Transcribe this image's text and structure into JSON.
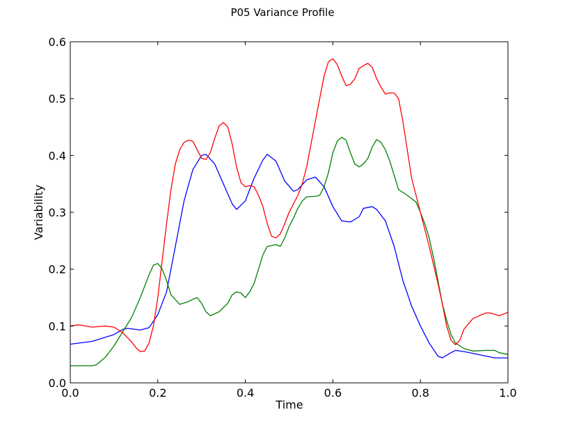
{
  "chart_data": {
    "type": "line",
    "title": "P05 Variance Profile",
    "xlabel": "Time",
    "ylabel": "Variability",
    "xlim": [
      0.0,
      1.0
    ],
    "ylim": [
      0.0,
      0.6
    ],
    "x_ticks": [
      "0.0",
      "0.2",
      "0.4",
      "0.6",
      "0.8",
      "1.0"
    ],
    "y_ticks": [
      "0.0",
      "0.1",
      "0.2",
      "0.3",
      "0.4",
      "0.5",
      "0.6"
    ],
    "grid": false,
    "series": [
      {
        "color": "#0000ff",
        "points": [
          [
            0.0,
            0.068
          ],
          [
            0.05,
            0.073
          ],
          [
            0.1,
            0.085
          ],
          [
            0.12,
            0.094
          ],
          [
            0.13,
            0.096
          ],
          [
            0.16,
            0.093
          ],
          [
            0.18,
            0.097
          ],
          [
            0.2,
            0.12
          ],
          [
            0.22,
            0.16
          ],
          [
            0.24,
            0.24
          ],
          [
            0.26,
            0.32
          ],
          [
            0.28,
            0.375
          ],
          [
            0.3,
            0.4
          ],
          [
            0.31,
            0.402
          ],
          [
            0.33,
            0.385
          ],
          [
            0.35,
            0.35
          ],
          [
            0.37,
            0.315
          ],
          [
            0.38,
            0.305
          ],
          [
            0.4,
            0.32
          ],
          [
            0.42,
            0.36
          ],
          [
            0.44,
            0.392
          ],
          [
            0.45,
            0.402
          ],
          [
            0.47,
            0.39
          ],
          [
            0.49,
            0.355
          ],
          [
            0.51,
            0.337
          ],
          [
            0.52,
            0.34
          ],
          [
            0.54,
            0.357
          ],
          [
            0.56,
            0.362
          ],
          [
            0.58,
            0.345
          ],
          [
            0.6,
            0.31
          ],
          [
            0.62,
            0.285
          ],
          [
            0.64,
            0.283
          ],
          [
            0.66,
            0.292
          ],
          [
            0.67,
            0.307
          ],
          [
            0.69,
            0.31
          ],
          [
            0.7,
            0.305
          ],
          [
            0.72,
            0.285
          ],
          [
            0.74,
            0.24
          ],
          [
            0.76,
            0.18
          ],
          [
            0.78,
            0.135
          ],
          [
            0.8,
            0.1
          ],
          [
            0.82,
            0.07
          ],
          [
            0.84,
            0.047
          ],
          [
            0.85,
            0.044
          ],
          [
            0.87,
            0.053
          ],
          [
            0.88,
            0.057
          ],
          [
            0.9,
            0.055
          ],
          [
            0.95,
            0.047
          ],
          [
            0.97,
            0.044
          ],
          [
            1.0,
            0.044
          ]
        ]
      },
      {
        "color": "#008000",
        "points": [
          [
            0.0,
            0.03
          ],
          [
            0.05,
            0.03
          ],
          [
            0.06,
            0.032
          ],
          [
            0.08,
            0.045
          ],
          [
            0.1,
            0.065
          ],
          [
            0.12,
            0.09
          ],
          [
            0.14,
            0.115
          ],
          [
            0.16,
            0.15
          ],
          [
            0.18,
            0.19
          ],
          [
            0.19,
            0.207
          ],
          [
            0.2,
            0.21
          ],
          [
            0.21,
            0.2
          ],
          [
            0.22,
            0.18
          ],
          [
            0.23,
            0.155
          ],
          [
            0.25,
            0.138
          ],
          [
            0.27,
            0.143
          ],
          [
            0.28,
            0.147
          ],
          [
            0.29,
            0.15
          ],
          [
            0.3,
            0.14
          ],
          [
            0.31,
            0.125
          ],
          [
            0.32,
            0.118
          ],
          [
            0.34,
            0.125
          ],
          [
            0.36,
            0.14
          ],
          [
            0.37,
            0.155
          ],
          [
            0.38,
            0.16
          ],
          [
            0.39,
            0.158
          ],
          [
            0.4,
            0.15
          ],
          [
            0.41,
            0.16
          ],
          [
            0.42,
            0.175
          ],
          [
            0.43,
            0.2
          ],
          [
            0.44,
            0.225
          ],
          [
            0.45,
            0.24
          ],
          [
            0.47,
            0.243
          ],
          [
            0.48,
            0.24
          ],
          [
            0.49,
            0.255
          ],
          [
            0.5,
            0.275
          ],
          [
            0.51,
            0.29
          ],
          [
            0.52,
            0.307
          ],
          [
            0.53,
            0.32
          ],
          [
            0.54,
            0.327
          ],
          [
            0.56,
            0.328
          ],
          [
            0.57,
            0.33
          ],
          [
            0.58,
            0.345
          ],
          [
            0.59,
            0.37
          ],
          [
            0.6,
            0.405
          ],
          [
            0.61,
            0.425
          ],
          [
            0.62,
            0.432
          ],
          [
            0.63,
            0.427
          ],
          [
            0.64,
            0.405
          ],
          [
            0.65,
            0.385
          ],
          [
            0.66,
            0.38
          ],
          [
            0.67,
            0.385
          ],
          [
            0.68,
            0.395
          ],
          [
            0.69,
            0.415
          ],
          [
            0.7,
            0.428
          ],
          [
            0.71,
            0.423
          ],
          [
            0.72,
            0.41
          ],
          [
            0.73,
            0.39
          ],
          [
            0.74,
            0.365
          ],
          [
            0.75,
            0.34
          ],
          [
            0.77,
            0.33
          ],
          [
            0.79,
            0.318
          ],
          [
            0.8,
            0.3
          ],
          [
            0.81,
            0.28
          ],
          [
            0.82,
            0.255
          ],
          [
            0.83,
            0.22
          ],
          [
            0.84,
            0.18
          ],
          [
            0.85,
            0.14
          ],
          [
            0.86,
            0.11
          ],
          [
            0.87,
            0.085
          ],
          [
            0.88,
            0.07
          ],
          [
            0.9,
            0.06
          ],
          [
            0.92,
            0.056
          ],
          [
            0.95,
            0.057
          ],
          [
            0.97,
            0.057
          ],
          [
            0.98,
            0.053
          ],
          [
            1.0,
            0.05
          ]
        ]
      },
      {
        "color": "#ff0000",
        "points": [
          [
            0.0,
            0.1
          ],
          [
            0.02,
            0.102
          ],
          [
            0.05,
            0.098
          ],
          [
            0.08,
            0.1
          ],
          [
            0.1,
            0.098
          ],
          [
            0.12,
            0.088
          ],
          [
            0.14,
            0.072
          ],
          [
            0.15,
            0.062
          ],
          [
            0.16,
            0.055
          ],
          [
            0.17,
            0.056
          ],
          [
            0.18,
            0.07
          ],
          [
            0.19,
            0.1
          ],
          [
            0.2,
            0.15
          ],
          [
            0.21,
            0.215
          ],
          [
            0.22,
            0.28
          ],
          [
            0.23,
            0.34
          ],
          [
            0.24,
            0.385
          ],
          [
            0.25,
            0.41
          ],
          [
            0.26,
            0.423
          ],
          [
            0.27,
            0.427
          ],
          [
            0.28,
            0.425
          ],
          [
            0.29,
            0.41
          ],
          [
            0.3,
            0.395
          ],
          [
            0.31,
            0.393
          ],
          [
            0.32,
            0.405
          ],
          [
            0.33,
            0.43
          ],
          [
            0.34,
            0.452
          ],
          [
            0.35,
            0.458
          ],
          [
            0.36,
            0.45
          ],
          [
            0.37,
            0.42
          ],
          [
            0.38,
            0.38
          ],
          [
            0.39,
            0.352
          ],
          [
            0.4,
            0.345
          ],
          [
            0.41,
            0.347
          ],
          [
            0.42,
            0.345
          ],
          [
            0.43,
            0.33
          ],
          [
            0.44,
            0.31
          ],
          [
            0.45,
            0.28
          ],
          [
            0.46,
            0.258
          ],
          [
            0.47,
            0.255
          ],
          [
            0.48,
            0.262
          ],
          [
            0.49,
            0.28
          ],
          [
            0.5,
            0.3
          ],
          [
            0.51,
            0.315
          ],
          [
            0.52,
            0.33
          ],
          [
            0.53,
            0.35
          ],
          [
            0.54,
            0.38
          ],
          [
            0.55,
            0.42
          ],
          [
            0.56,
            0.46
          ],
          [
            0.57,
            0.5
          ],
          [
            0.58,
            0.54
          ],
          [
            0.59,
            0.565
          ],
          [
            0.6,
            0.57
          ],
          [
            0.61,
            0.56
          ],
          [
            0.62,
            0.54
          ],
          [
            0.63,
            0.523
          ],
          [
            0.64,
            0.525
          ],
          [
            0.65,
            0.535
          ],
          [
            0.66,
            0.553
          ],
          [
            0.67,
            0.558
          ],
          [
            0.68,
            0.562
          ],
          [
            0.69,
            0.555
          ],
          [
            0.7,
            0.535
          ],
          [
            0.71,
            0.52
          ],
          [
            0.72,
            0.508
          ],
          [
            0.73,
            0.51
          ],
          [
            0.74,
            0.51
          ],
          [
            0.75,
            0.5
          ],
          [
            0.76,
            0.46
          ],
          [
            0.77,
            0.41
          ],
          [
            0.78,
            0.36
          ],
          [
            0.8,
            0.3
          ],
          [
            0.82,
            0.24
          ],
          [
            0.84,
            0.175
          ],
          [
            0.85,
            0.14
          ],
          [
            0.86,
            0.1
          ],
          [
            0.87,
            0.075
          ],
          [
            0.88,
            0.067
          ],
          [
            0.89,
            0.075
          ],
          [
            0.9,
            0.095
          ],
          [
            0.92,
            0.113
          ],
          [
            0.94,
            0.12
          ],
          [
            0.95,
            0.123
          ],
          [
            0.96,
            0.123
          ],
          [
            0.98,
            0.118
          ],
          [
            1.0,
            0.124
          ]
        ]
      }
    ]
  }
}
